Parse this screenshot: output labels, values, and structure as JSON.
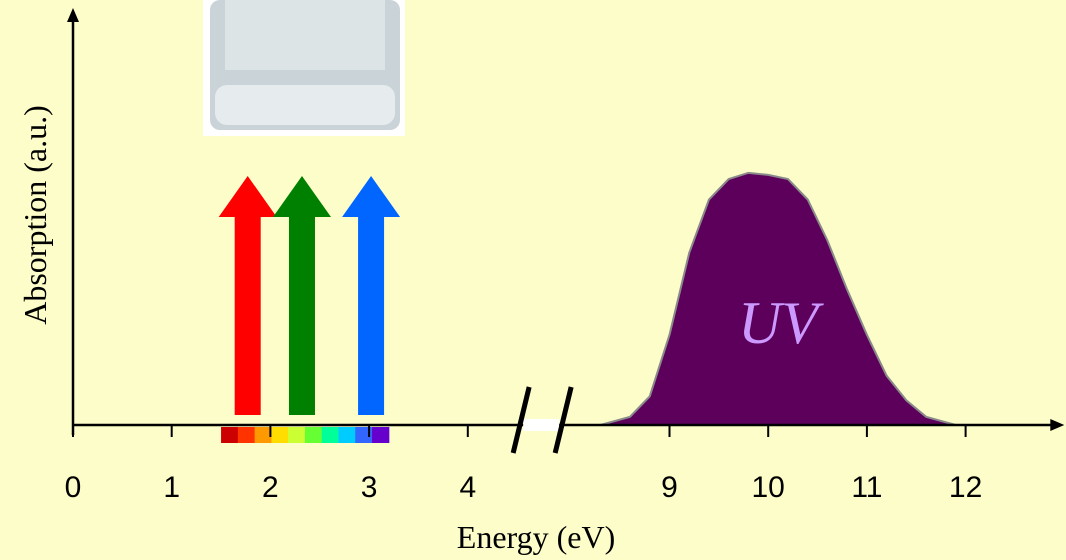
{
  "chart_data": {
    "type": "area",
    "xlabel": "Energy (eV)",
    "ylabel": "Absorption (a.u.)",
    "xlim": [
      0,
      13
    ],
    "ylim": [
      0,
      1
    ],
    "xticks": [
      0,
      1,
      2,
      3,
      4,
      9,
      10,
      11,
      12
    ],
    "xbreak": [
      4.5,
      8.5
    ],
    "series": [
      {
        "name": "UV",
        "color": "#5c005c",
        "x": [
          8.3,
          8.6,
          8.8,
          9,
          9.2,
          9.4,
          9.6,
          9.8,
          10,
          10.2,
          10.4,
          10.6,
          10.8,
          11,
          11.2,
          11.4,
          11.6,
          11.9
        ],
        "values": [
          0,
          0.02,
          0.07,
          0.22,
          0.42,
          0.55,
          0.6,
          0.615,
          0.61,
          0.6,
          0.55,
          0.45,
          0.33,
          0.22,
          0.12,
          0.06,
          0.02,
          0
        ]
      }
    ],
    "arrows": [
      {
        "color": "#ff0000",
        "x": 1.77
      },
      {
        "color": "#008000",
        "x": 2.32
      },
      {
        "color": "#0066ff",
        "x": 3.02
      }
    ],
    "spectrum": {
      "range": [
        1.5,
        3.2
      ],
      "colors": [
        "#cc0000",
        "#ff3300",
        "#ff9900",
        "#ffdd00",
        "#ccff33",
        "#66ff33",
        "#00ff99",
        "#00ccff",
        "#3366ff",
        "#6600cc"
      ]
    }
  }
}
